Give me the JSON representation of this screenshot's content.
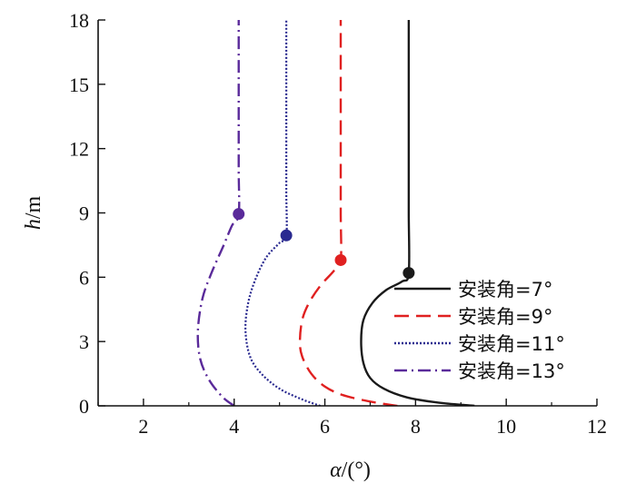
{
  "chart_data": {
    "type": "line",
    "xlabel": {
      "var": "α",
      "unit": "/(°)"
    },
    "ylabel": {
      "var": "h",
      "unit": "/m"
    },
    "xlim": [
      1,
      12
    ],
    "ylim": [
      0,
      18
    ],
    "xticks": [
      "2",
      "4",
      "6",
      "8",
      "10",
      "12"
    ],
    "yticks": [
      "0",
      "3",
      "6",
      "9",
      "12",
      "15",
      "18"
    ],
    "legend_position": "bottom-right",
    "grid": false,
    "series": [
      {
        "name": "安装角=7°",
        "color": "#1a1a1a",
        "dash": "solid",
        "marker_point": [
          7.85,
          6.2
        ],
        "points": [
          [
            9.3,
            0
          ],
          [
            8.5,
            0.15
          ],
          [
            7.8,
            0.4
          ],
          [
            7.3,
            0.8
          ],
          [
            7.0,
            1.3
          ],
          [
            6.85,
            2.0
          ],
          [
            6.8,
            3.0
          ],
          [
            6.85,
            4.0
          ],
          [
            7.05,
            4.8
          ],
          [
            7.35,
            5.4
          ],
          [
            7.7,
            5.8
          ],
          [
            7.85,
            6.2
          ],
          [
            7.85,
            9
          ],
          [
            7.85,
            12
          ],
          [
            7.85,
            15
          ],
          [
            7.85,
            18
          ]
        ]
      },
      {
        "name": "安装角=9°",
        "color": "#e02020",
        "dash": "16,8",
        "marker_point": [
          6.35,
          6.8
        ],
        "points": [
          [
            7.6,
            0
          ],
          [
            7.0,
            0.2
          ],
          [
            6.4,
            0.5
          ],
          [
            6.0,
            0.9
          ],
          [
            5.7,
            1.5
          ],
          [
            5.5,
            2.3
          ],
          [
            5.45,
            3.0
          ],
          [
            5.5,
            4.0
          ],
          [
            5.65,
            4.8
          ],
          [
            5.9,
            5.6
          ],
          [
            6.2,
            6.3
          ],
          [
            6.35,
            6.8
          ],
          [
            6.35,
            9
          ],
          [
            6.35,
            12
          ],
          [
            6.35,
            15
          ],
          [
            6.35,
            18
          ]
        ]
      },
      {
        "name": "安装角=11°",
        "color": "#2a2a90",
        "dash": "2,2",
        "marker_point": [
          5.15,
          7.95
        ],
        "points": [
          [
            5.9,
            0
          ],
          [
            5.5,
            0.3
          ],
          [
            5.0,
            0.8
          ],
          [
            4.6,
            1.5
          ],
          [
            4.35,
            2.3
          ],
          [
            4.25,
            3.5
          ],
          [
            4.3,
            4.7
          ],
          [
            4.45,
            5.8
          ],
          [
            4.7,
            6.9
          ],
          [
            5.0,
            7.6
          ],
          [
            5.15,
            7.95
          ],
          [
            5.15,
            10
          ],
          [
            5.15,
            13
          ],
          [
            5.15,
            16
          ],
          [
            5.15,
            18
          ]
        ]
      },
      {
        "name": "安装角=13°",
        "color": "#5a2a9a",
        "dash": "14,5,2,5",
        "marker_point": [
          4.1,
          8.95
        ],
        "points": [
          [
            4.0,
            0
          ],
          [
            3.75,
            0.4
          ],
          [
            3.45,
            1.2
          ],
          [
            3.25,
            2.2
          ],
          [
            3.2,
            3.5
          ],
          [
            3.3,
            5.0
          ],
          [
            3.5,
            6.2
          ],
          [
            3.75,
            7.4
          ],
          [
            3.95,
            8.4
          ],
          [
            4.1,
            8.95
          ],
          [
            4.1,
            11
          ],
          [
            4.1,
            14
          ],
          [
            4.1,
            16
          ],
          [
            4.1,
            18
          ]
        ]
      }
    ]
  }
}
